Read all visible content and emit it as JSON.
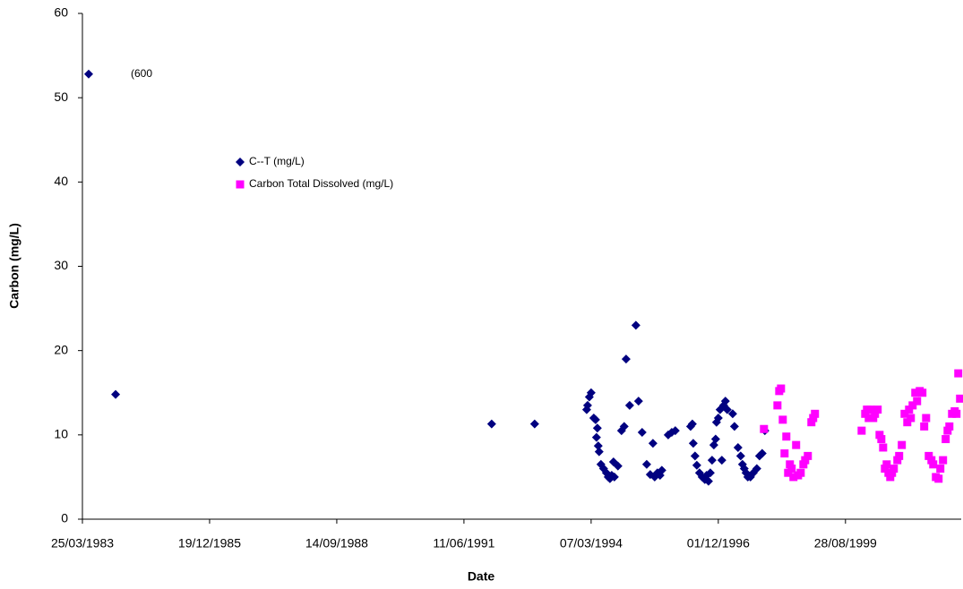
{
  "chart_data": {
    "type": "scatter",
    "x_label": "Date",
    "y_label": "Carbon (mg/L)",
    "annotation": "(600",
    "xlim": [
      30400,
      37310
    ],
    "xticks": [
      {
        "value": 30400,
        "label": "25/03/1983"
      },
      {
        "value": 31400,
        "label": "19/12/1985"
      },
      {
        "value": 32400,
        "label": "14/09/1988"
      },
      {
        "value": 33400,
        "label": "11/06/1991"
      },
      {
        "value": 34400,
        "label": "07/03/1994"
      },
      {
        "value": 35400,
        "label": "01/12/1996"
      },
      {
        "value": 36400,
        "label": "28/08/1999"
      }
    ],
    "ylim": [
      0,
      60
    ],
    "yticks": [
      0,
      10,
      20,
      30,
      40,
      50,
      60
    ],
    "grid": false,
    "series": [
      {
        "name": "C--T (mg/L)",
        "color": "#000080",
        "marker": "diamond",
        "x": [
          30449,
          30661,
          33618,
          33956,
          34365,
          34372,
          34386,
          34400,
          34421,
          34435,
          34442,
          34449,
          34456,
          34463,
          34477,
          34498,
          34520,
          34534,
          34548,
          34562,
          34576,
          34583,
          34611,
          34639,
          34660,
          34675,
          34703,
          34752,
          34773,
          34801,
          34837,
          34865,
          34886,
          34900,
          34921,
          34942,
          34956,
          35006,
          35034,
          35062,
          35182,
          35196,
          35203,
          35217,
          35231,
          35252,
          35273,
          35294,
          35308,
          35323,
          35337,
          35351,
          35365,
          35379,
          35386,
          35400,
          35414,
          35428,
          35442,
          35456,
          35470,
          35513,
          35527,
          35555,
          35576,
          35590,
          35604,
          35618,
          35632,
          35653,
          35675,
          35703,
          35724,
          35745,
          35766
        ],
        "values": [
          52.8,
          14.8,
          11.3,
          11.3,
          13.0,
          13.5,
          14.5,
          15.0,
          12.0,
          11.8,
          9.7,
          10.8,
          8.7,
          8.0,
          6.5,
          6.0,
          5.5,
          5.0,
          4.8,
          5.2,
          6.8,
          5.0,
          6.3,
          10.5,
          11.0,
          19.0,
          13.5,
          23.0,
          14.0,
          10.3,
          6.5,
          5.3,
          9.0,
          5.0,
          5.5,
          5.2,
          5.8,
          10.0,
          10.3,
          10.5,
          11.0,
          11.3,
          9.0,
          7.5,
          6.4,
          5.5,
          5.0,
          4.7,
          5.2,
          4.5,
          5.5,
          7.0,
          8.8,
          9.5,
          11.5,
          12.0,
          13.0,
          7.0,
          13.5,
          14.0,
          13.0,
          12.5,
          11.0,
          8.5,
          7.5,
          6.5,
          6.0,
          5.5,
          5.0,
          5.0,
          5.5,
          6.0,
          7.5,
          7.8,
          10.5
        ]
      },
      {
        "name": "Carbon Total Dissolved (mg/L)",
        "color": "#ff00ff",
        "marker": "square",
        "x": [
          35759,
          35865,
          35879,
          35893,
          35907,
          35921,
          35935,
          35949,
          35963,
          35977,
          35991,
          36012,
          36027,
          36048,
          36069,
          36083,
          36104,
          36132,
          36146,
          36160,
          36527,
          36555,
          36569,
          36583,
          36597,
          36618,
          36632,
          36653,
          36668,
          36682,
          36696,
          36710,
          36724,
          36738,
          36752,
          36766,
          36780,
          36808,
          36822,
          36843,
          36865,
          36886,
          36900,
          36914,
          36928,
          36949,
          36963,
          36984,
          37005,
          37019,
          37034,
          37055,
          37076,
          37090,
          37111,
          37132,
          37146,
          37167,
          37188,
          37203,
          37217,
          37238,
          37259,
          37273,
          37287,
          37301
        ],
        "values": [
          10.7,
          13.5,
          15.2,
          15.5,
          11.8,
          7.8,
          9.8,
          5.5,
          6.5,
          6.0,
          5.0,
          8.8,
          5.2,
          5.5,
          6.5,
          7.0,
          7.5,
          11.5,
          12.0,
          12.5,
          10.5,
          12.5,
          13.0,
          12.0,
          13.0,
          12.0,
          12.5,
          13.0,
          10.0,
          9.5,
          8.5,
          6.0,
          6.5,
          5.5,
          5.0,
          5.5,
          6.0,
          7.0,
          7.5,
          8.8,
          12.5,
          11.5,
          13.0,
          12.0,
          13.5,
          15.0,
          14.0,
          15.2,
          15.0,
          11.0,
          12.0,
          7.5,
          7.0,
          6.5,
          5.0,
          4.8,
          6.0,
          7.0,
          9.5,
          10.5,
          11.0,
          12.5,
          12.8,
          12.5,
          17.3,
          14.3
        ]
      }
    ]
  }
}
